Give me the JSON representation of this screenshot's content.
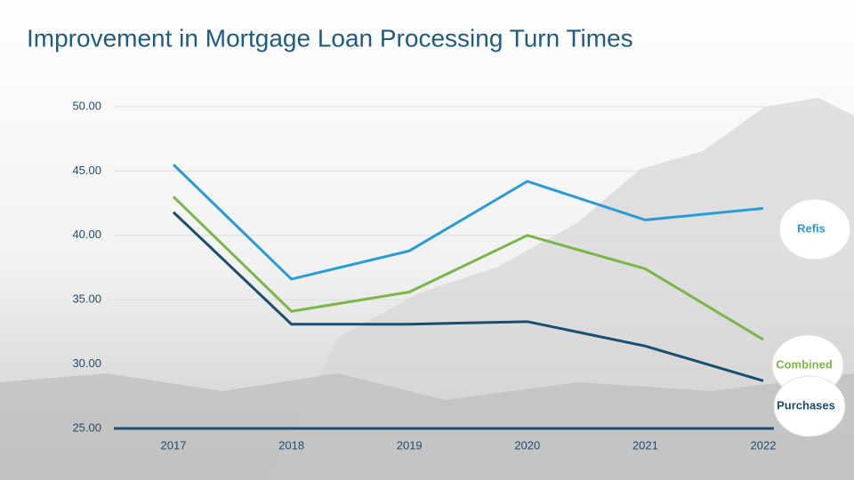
{
  "chart_data": {
    "type": "line",
    "title": "Improvement in Mortgage Loan Processing Turn Times",
    "categories": [
      "2017",
      "2018",
      "2019",
      "2020",
      "2021",
      "2022"
    ],
    "series": [
      {
        "name": "Refis",
        "color": "#2a9bd6",
        "values": [
          45.5,
          36.6,
          38.8,
          44.2,
          41.2,
          42.1
        ]
      },
      {
        "name": "Combined",
        "color": "#7ab648",
        "values": [
          43.0,
          34.1,
          35.6,
          40.0,
          37.4,
          31.9
        ]
      },
      {
        "name": "Purchases",
        "color": "#1a4e6e",
        "values": [
          41.8,
          33.1,
          33.1,
          33.3,
          31.4,
          28.7
        ]
      }
    ],
    "ylim": [
      25,
      50
    ],
    "yticks": [
      {
        "value": 25,
        "label": "25.00"
      },
      {
        "value": 30,
        "label": "30.00"
      },
      {
        "value": 35,
        "label": "35.00"
      },
      {
        "value": 40,
        "label": "40.00"
      },
      {
        "value": 45,
        "label": "45.00"
      },
      {
        "value": 50,
        "label": "50.00"
      }
    ],
    "grid": true
  }
}
